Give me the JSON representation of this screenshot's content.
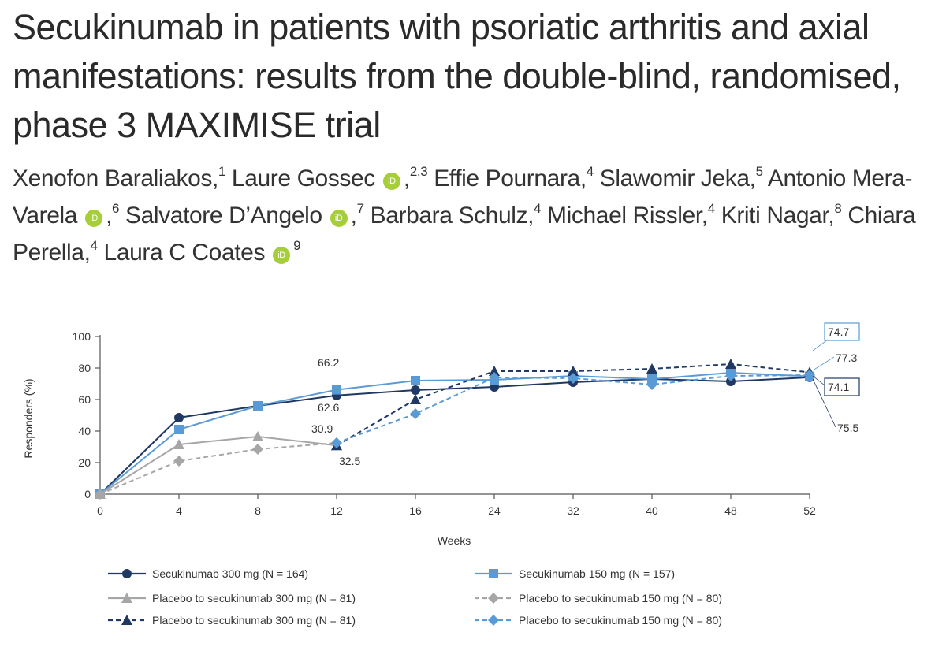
{
  "paper": {
    "title": "Secukinumab in patients with psoriatic arthritis and axial manifestations: results from the double-blind, randomised, phase 3 MAXIMISE trial",
    "authors": [
      {
        "name": "Xenofon Baraliakos,",
        "sup": "1",
        "orcid": false
      },
      {
        "name": "Laure Gossec",
        "sup": "2,3",
        "orcid": true
      },
      {
        "name": "Effie Pournara,",
        "sup": "4",
        "orcid": false
      },
      {
        "name": "Slawomir Jeka,",
        "sup": "5",
        "orcid": false
      },
      {
        "name": "Antonio Mera-Varela",
        "sup": "6",
        "orcid": true
      },
      {
        "name": "Salvatore D’Angelo",
        "sup": "7",
        "orcid": true
      },
      {
        "name": "Barbara Schulz,",
        "sup": "4",
        "orcid": false
      },
      {
        "name": "Michael Rissler,",
        "sup": "4",
        "orcid": false
      },
      {
        "name": "Kriti Nagar,",
        "sup": "8",
        "orcid": false
      },
      {
        "name": "Chiara Perella,",
        "sup": "4",
        "orcid": false
      },
      {
        "name": "Laura C Coates",
        "sup": "9",
        "orcid": true
      }
    ],
    "orcid_label": "iD"
  },
  "chart_data": {
    "type": "line",
    "title": "",
    "xlabel": "Weeks",
    "ylabel": "Responders (%)",
    "categories": [
      "0",
      "4",
      "8",
      "12",
      "16",
      "24",
      "32",
      "40",
      "48",
      "52"
    ],
    "ylim": [
      0,
      100
    ],
    "yticks": [
      0,
      20,
      40,
      60,
      80,
      100
    ],
    "series": [
      {
        "name": "Secukinumab 300 mg (N = 164)",
        "color": "#1f3864",
        "marker": "circle",
        "dash": false,
        "values": [
          0,
          48.5,
          56,
          62.6,
          66,
          68,
          71,
          73,
          71.5,
          74.1
        ]
      },
      {
        "name": "Secukinumab 150 mg (N = 157)",
        "color": "#5b9bd5",
        "marker": "square",
        "dash": false,
        "values": [
          0,
          41,
          56,
          66.2,
          72,
          72.5,
          75,
          73,
          77,
          74.7
        ]
      },
      {
        "name": "Placebo to secukinumab 300 mg (N = 81)",
        "color": "#a6a6a6",
        "marker": "triangle",
        "dash": false,
        "values": [
          0,
          31.5,
          36.5,
          30.9,
          null,
          null,
          null,
          null,
          null,
          null
        ]
      },
      {
        "name": "Placebo to secukinumab 150 mg (N = 80)",
        "color": "#a6a6a6",
        "marker": "diamond",
        "dash": true,
        "values": [
          0,
          21,
          28.5,
          32.5,
          null,
          null,
          null,
          null,
          null,
          null
        ]
      },
      {
        "name": "Placebo to secukinumab 300 mg (N = 81)",
        "color": "#1f3864",
        "marker": "triangle",
        "dash": true,
        "values": [
          null,
          null,
          null,
          30.9,
          60,
          78,
          78,
          79.5,
          82.5,
          77.3
        ]
      },
      {
        "name": "Placebo to secukinumab 150 mg (N = 80)",
        "color": "#5b9bd5",
        "marker": "diamond",
        "dash": true,
        "values": [
          null,
          null,
          null,
          32.5,
          51,
          74,
          73.5,
          69.5,
          75,
          75.5
        ]
      }
    ],
    "annotations": [
      {
        "text": "66.2",
        "color": "#5b9bd5",
        "boxed": false
      },
      {
        "text": "62.6",
        "color": "#1f3864",
        "boxed": false
      },
      {
        "text": "30.9",
        "color": "#1f3864",
        "boxed": false
      },
      {
        "text": "32.5",
        "color": "#5b9bd5",
        "boxed": false
      },
      {
        "text": "74.7",
        "color": "#5b9bd5",
        "boxed": true
      },
      {
        "text": "77.3",
        "color": "#5b9bd5",
        "boxed": false
      },
      {
        "text": "74.1",
        "color": "#1f3864",
        "boxed": true
      },
      {
        "text": "75.5",
        "color": "#1f3864",
        "boxed": false
      }
    ]
  }
}
